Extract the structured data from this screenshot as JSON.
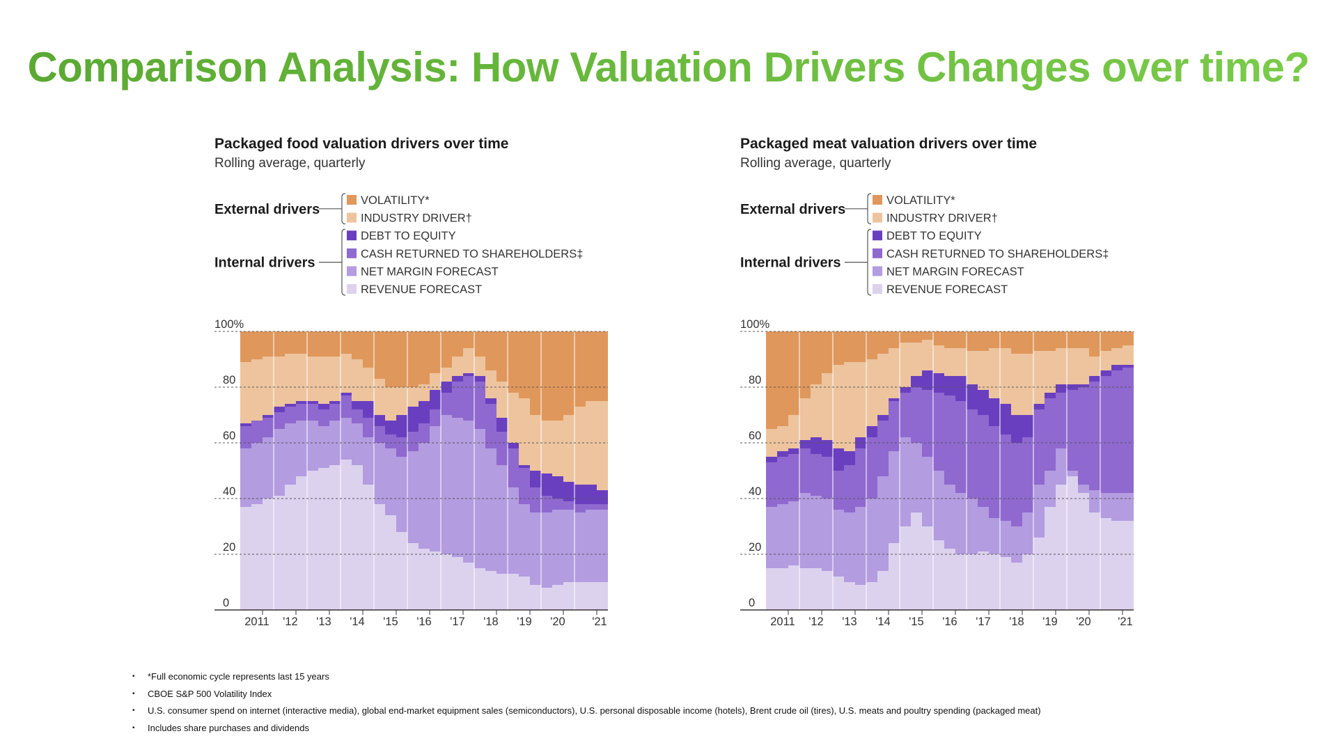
{
  "slide": {
    "title": "Comparison Analysis: How Valuation Drivers Changes over time?"
  },
  "legend": {
    "external_label": "External drivers",
    "internal_label": "Internal drivers",
    "items": [
      {
        "label": "VOLATILITY*",
        "color": "#e0975b"
      },
      {
        "label": "INDUSTRY DRIVER†",
        "color": "#edc49e"
      },
      {
        "label": "DEBT TO EQUITY",
        "color": "#6a3fbf"
      },
      {
        "label": "CASH RETURNED TO SHAREHOLDERS‡",
        "color": "#8f69cf"
      },
      {
        "label": "NET MARGIN FORECAST",
        "color": "#b39ce0"
      },
      {
        "label": "REVENUE FORECAST",
        "color": "#dcd2ee"
      }
    ]
  },
  "chart_data": [
    {
      "type": "area",
      "title": "Packaged food valuation drivers over time",
      "subtitle": "Rolling average, quarterly",
      "ylim": [
        0,
        100
      ],
      "y_ticks": [
        "100%",
        "80",
        "60",
        "40",
        "20",
        "0"
      ],
      "x_tick_labels": [
        "2011",
        "'12",
        "'13",
        "'14",
        "'15",
        "'16",
        "'17",
        "'18",
        "'19",
        "'20",
        "'21"
      ],
      "stacked": true,
      "series_order_bottom_to_top": [
        "REVENUE FORECAST",
        "NET MARGIN FORECAST",
        "CASH RETURNED TO SHAREHOLDERS‡",
        "DEBT TO EQUITY",
        "INDUSTRY DRIVER†",
        "VOLATILITY*"
      ],
      "cumulative_top_boundaries": {
        "REVENUE FORECAST": [
          37,
          38,
          40,
          41,
          45,
          48,
          50,
          51,
          52,
          54,
          52,
          45,
          38,
          34,
          28,
          24,
          22,
          21,
          20,
          19,
          17,
          15,
          14,
          13,
          13,
          12,
          9,
          8,
          9,
          10,
          10,
          10,
          10
        ],
        "NET MARGIN FORECAST": [
          58,
          60,
          62,
          65,
          67,
          68,
          68,
          66,
          68,
          69,
          67,
          62,
          60,
          58,
          55,
          57,
          60,
          66,
          70,
          69,
          68,
          65,
          58,
          52,
          44,
          38,
          35,
          35,
          36,
          36,
          35,
          36,
          36
        ],
        "CASH RETURNED TO SHAREHOLDERS‡": [
          66,
          68,
          69,
          71,
          73,
          74,
          74,
          72,
          74,
          77,
          72,
          69,
          66,
          63,
          62,
          64,
          67,
          72,
          78,
          82,
          84,
          82,
          74,
          64,
          58,
          51,
          44,
          41,
          40,
          39,
          38,
          38,
          38
        ],
        "DEBT TO EQUITY": [
          67,
          68,
          70,
          73,
          74,
          75,
          75,
          74,
          75,
          78,
          75,
          75,
          70,
          68,
          70,
          73,
          75,
          79,
          82,
          84,
          85,
          84,
          76,
          69,
          60,
          52,
          50,
          49,
          48,
          46,
          45,
          45,
          43
        ],
        "INDUSTRY DRIVER†": [
          89,
          90,
          91,
          91,
          92,
          92,
          91,
          91,
          91,
          92,
          90,
          87,
          83,
          80,
          80,
          80,
          81,
          85,
          87,
          91,
          94,
          91,
          86,
          82,
          78,
          76,
          70,
          68,
          68,
          70,
          73,
          75,
          75
        ],
        "VOLATILITY*": [
          100,
          100,
          100,
          100,
          100,
          100,
          100,
          100,
          100,
          100,
          100,
          100,
          100,
          100,
          100,
          100,
          100,
          100,
          100,
          100,
          100,
          100,
          100,
          100,
          100,
          100,
          100,
          100,
          100,
          100,
          100,
          100,
          100
        ]
      }
    },
    {
      "type": "area",
      "title": "Packaged meat valuation drivers over time",
      "subtitle": "Rolling average, quarterly",
      "ylim": [
        0,
        100
      ],
      "y_ticks": [
        "100%",
        "80",
        "60",
        "40",
        "20",
        "0"
      ],
      "x_tick_labels": [
        "2011",
        "'12",
        "'13",
        "'14",
        "'15",
        "'16",
        "'17",
        "'18",
        "'19",
        "'20",
        "'21"
      ],
      "stacked": true,
      "series_order_bottom_to_top": [
        "REVENUE FORECAST",
        "NET MARGIN FORECAST",
        "CASH RETURNED TO SHAREHOLDERS‡",
        "DEBT TO EQUITY",
        "INDUSTRY DRIVER†",
        "VOLATILITY*"
      ],
      "cumulative_top_boundaries": {
        "REVENUE FORECAST": [
          15,
          15,
          16,
          15,
          15,
          14,
          12,
          10,
          9,
          10,
          14,
          24,
          30,
          35,
          30,
          25,
          22,
          20,
          20,
          21,
          20,
          19,
          17,
          20,
          26,
          37,
          45,
          48,
          42,
          35,
          33,
          32,
          32
        ],
        "NET MARGIN FORECAST": [
          37,
          38,
          39,
          42,
          41,
          40,
          36,
          35,
          37,
          40,
          48,
          57,
          62,
          60,
          55,
          50,
          45,
          42,
          40,
          37,
          33,
          32,
          30,
          35,
          45,
          50,
          58,
          50,
          45,
          43,
          42,
          42,
          42
        ],
        "CASH RETURNED TO SHAREHOLDERS‡": [
          53,
          55,
          56,
          58,
          56,
          55,
          50,
          52,
          58,
          62,
          68,
          75,
          78,
          80,
          79,
          78,
          77,
          75,
          72,
          70,
          66,
          63,
          60,
          62,
          72,
          76,
          78,
          79,
          80,
          82,
          84,
          86,
          87
        ],
        "DEBT TO EQUITY": [
          55,
          57,
          58,
          61,
          62,
          61,
          58,
          57,
          62,
          66,
          70,
          76,
          80,
          84,
          86,
          85,
          84,
          84,
          81,
          79,
          76,
          74,
          70,
          70,
          74,
          78,
          81,
          81,
          81,
          84,
          86,
          88,
          88
        ],
        "INDUSTRY DRIVER†": [
          65,
          66,
          70,
          76,
          81,
          85,
          88,
          89,
          89,
          90,
          92,
          94,
          96,
          96,
          97,
          95,
          94,
          94,
          93,
          93,
          94,
          94,
          92,
          92,
          93,
          93,
          94,
          94,
          94,
          91,
          93,
          94,
          95
        ],
        "VOLATILITY*": [
          100,
          100,
          100,
          100,
          100,
          100,
          100,
          100,
          100,
          100,
          100,
          100,
          100,
          100,
          100,
          100,
          100,
          100,
          100,
          100,
          100,
          100,
          100,
          100,
          100,
          100,
          100,
          100,
          100,
          100,
          100,
          100,
          100
        ]
      }
    }
  ],
  "footnotes": [
    "*Full economic cycle represents last 15 years",
    "CBOE S&P 500 Volatility Index",
    "U.S. consumer spend on internet (interactive media), global end-market equipment sales (semiconductors), U.S. personal disposable income (hotels), Brent crude oil (tires), U.S. meats and poultry spending (packaged meat)",
    "Includes share purchases and dividends"
  ]
}
